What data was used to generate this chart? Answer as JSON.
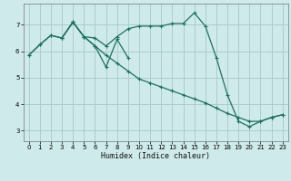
{
  "xlabel": "Humidex (Indice chaleur)",
  "bg_color": "#ceeaea",
  "grid_color": "#a8c8c8",
  "line_color": "#1e7060",
  "xlim": [
    -0.5,
    23.5
  ],
  "ylim": [
    2.6,
    7.8
  ],
  "xticks": [
    0,
    1,
    2,
    3,
    4,
    5,
    6,
    7,
    8,
    9,
    10,
    11,
    12,
    13,
    14,
    15,
    16,
    17,
    18,
    19,
    20,
    21,
    22,
    23
  ],
  "yticks": [
    3,
    4,
    5,
    6,
    7
  ],
  "series1_x": [
    0,
    1,
    2,
    3,
    4,
    5,
    6,
    7,
    8,
    9,
    10,
    11,
    12,
    13,
    14,
    15,
    16,
    17,
    18,
    19,
    20,
    21,
    22,
    23
  ],
  "series1_y": [
    5.85,
    6.25,
    6.6,
    6.5,
    7.1,
    6.55,
    6.5,
    6.2,
    6.55,
    6.85,
    6.95,
    6.95,
    6.95,
    7.05,
    7.05,
    7.45,
    6.95,
    5.75,
    4.35,
    3.35,
    3.15,
    3.35,
    3.5,
    3.6
  ],
  "series2_x": [
    0,
    1,
    2,
    3,
    4,
    5,
    6,
    7,
    8,
    9,
    10,
    11,
    12,
    13,
    14,
    15,
    16,
    17,
    18,
    19,
    20,
    21,
    22,
    23
  ],
  "series2_y": [
    5.85,
    6.25,
    6.6,
    6.5,
    7.1,
    6.55,
    6.2,
    5.85,
    5.55,
    5.25,
    4.95,
    4.8,
    4.65,
    4.5,
    4.35,
    4.2,
    4.05,
    3.85,
    3.65,
    3.5,
    3.35,
    3.35,
    3.5,
    3.6
  ],
  "series3_x": [
    3,
    4,
    5,
    6,
    7,
    8,
    9
  ],
  "series3_y": [
    6.5,
    7.1,
    6.55,
    6.2,
    5.4,
    6.45,
    5.75
  ]
}
